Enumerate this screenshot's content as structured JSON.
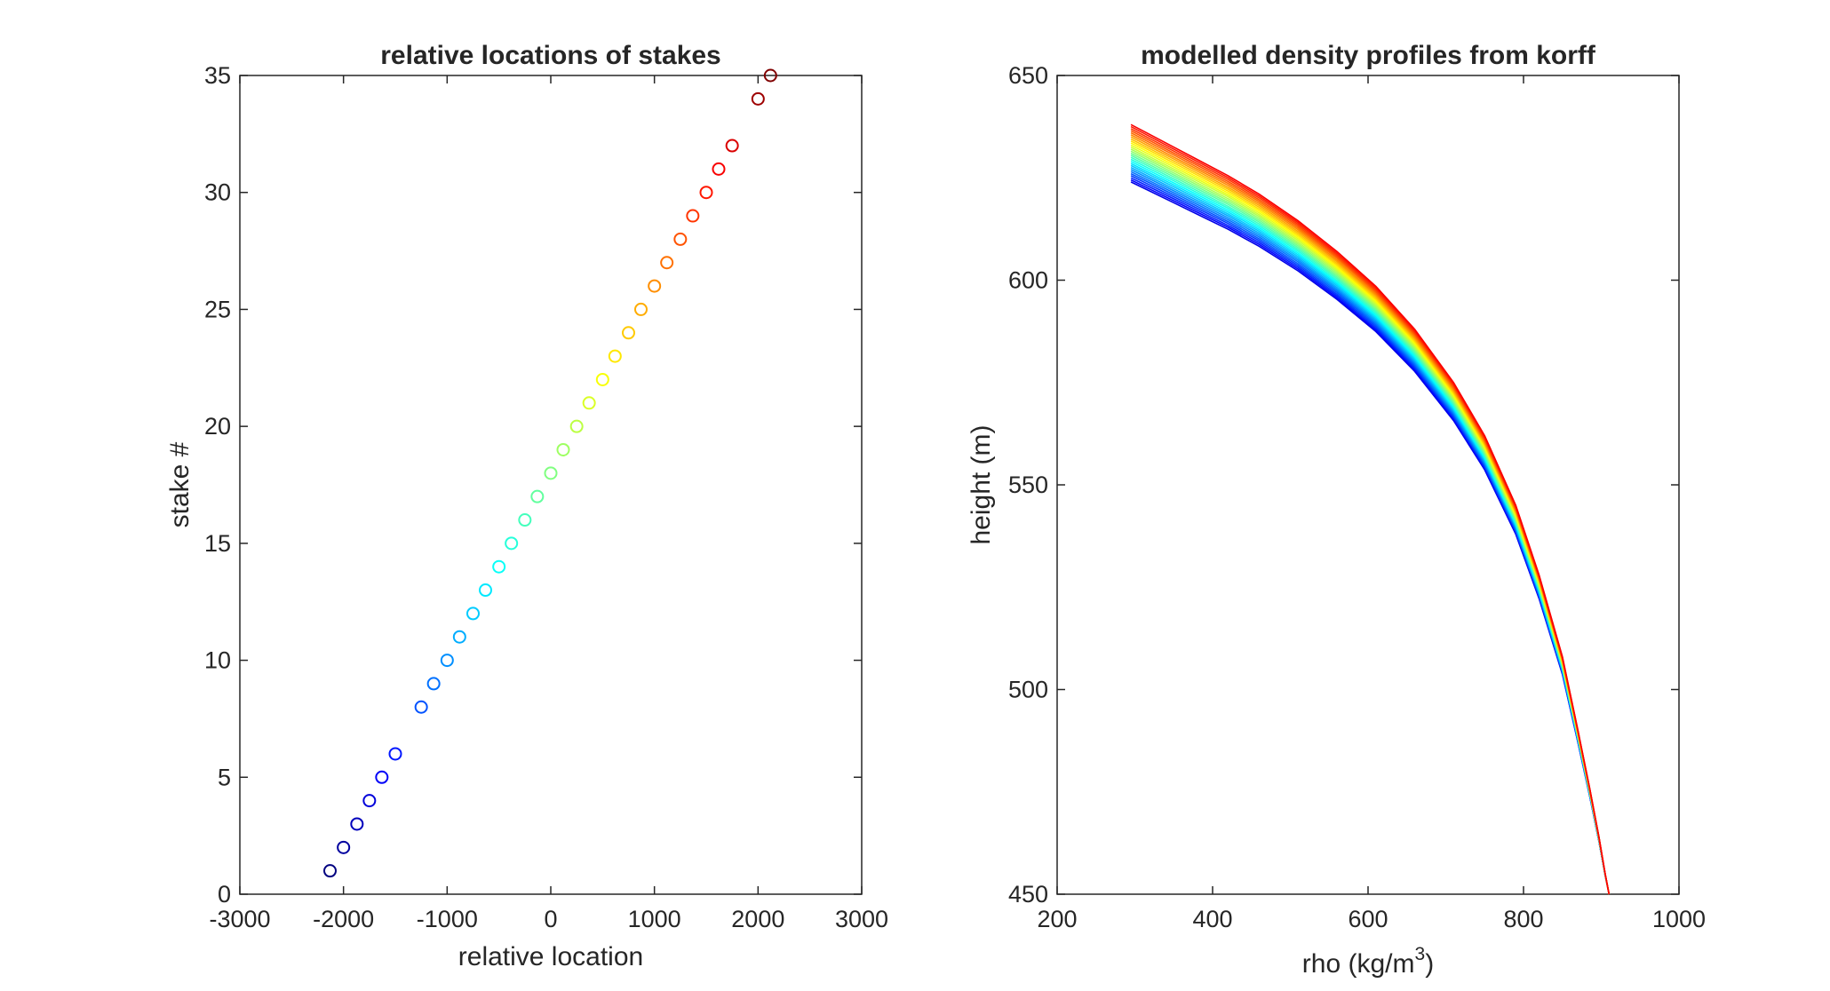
{
  "chart_data": [
    {
      "type": "scatter",
      "title": "relative locations of stakes",
      "xlabel": "relative location",
      "ylabel": "stake #",
      "xlim": [
        -3000,
        3000
      ],
      "ylim": [
        0,
        35
      ],
      "xticks": [
        "-3000",
        "-2000",
        "-1000",
        "0",
        "1000",
        "2000",
        "3000"
      ],
      "yticks": [
        "0",
        "5",
        "10",
        "15",
        "20",
        "25",
        "30",
        "35"
      ],
      "grid": false,
      "marker": "open-circle",
      "colormap": "jet",
      "points": [
        {
          "x": -2130,
          "y": 1
        },
        {
          "x": -2000,
          "y": 2
        },
        {
          "x": -1870,
          "y": 3
        },
        {
          "x": -1750,
          "y": 4
        },
        {
          "x": -1630,
          "y": 5
        },
        {
          "x": -1500,
          "y": 6
        },
        {
          "x": -1250,
          "y": 8
        },
        {
          "x": -1130,
          "y": 9
        },
        {
          "x": -1000,
          "y": 10
        },
        {
          "x": -880,
          "y": 11
        },
        {
          "x": -750,
          "y": 12
        },
        {
          "x": -630,
          "y": 13
        },
        {
          "x": -500,
          "y": 14
        },
        {
          "x": -380,
          "y": 15
        },
        {
          "x": -250,
          "y": 16
        },
        {
          "x": -130,
          "y": 17
        },
        {
          "x": 0,
          "y": 18
        },
        {
          "x": 120,
          "y": 19
        },
        {
          "x": 250,
          "y": 20
        },
        {
          "x": 370,
          "y": 21
        },
        {
          "x": 500,
          "y": 22
        },
        {
          "x": 620,
          "y": 23
        },
        {
          "x": 750,
          "y": 24
        },
        {
          "x": 870,
          "y": 25
        },
        {
          "x": 1000,
          "y": 26
        },
        {
          "x": 1120,
          "y": 27
        },
        {
          "x": 1250,
          "y": 28
        },
        {
          "x": 1370,
          "y": 29
        },
        {
          "x": 1500,
          "y": 30
        },
        {
          "x": 1620,
          "y": 31
        },
        {
          "x": 1750,
          "y": 32
        },
        {
          "x": 2000,
          "y": 34
        },
        {
          "x": 2120,
          "y": 35
        }
      ]
    },
    {
      "type": "line",
      "title": "modelled density profiles from korff",
      "xlabel": "rho (kg/m",
      "xlabel_sup": "3",
      "xlabel_end": ")",
      "ylabel": "height (m)",
      "xlim": [
        200,
        1000
      ],
      "ylim": [
        450,
        650
      ],
      "xticks": [
        "200",
        "400",
        "600",
        "800",
        "1000"
      ],
      "yticks": [
        "450",
        "500",
        "550",
        "600",
        "650"
      ],
      "grid": false,
      "colormap": "jet",
      "shared_x": [
        295,
        320,
        350,
        380,
        420,
        460,
        510,
        560,
        610,
        660,
        710,
        750,
        790,
        820,
        850,
        870,
        885,
        897,
        905,
        910
      ],
      "shared_depth_below_surface": [
        0,
        2.5,
        5.5,
        8.5,
        12.5,
        17,
        23.5,
        31,
        39.5,
        50,
        63,
        76,
        93,
        110,
        130,
        148,
        162,
        174,
        183,
        188
      ],
      "series": [
        {
          "surface": 638.0
        },
        {
          "surface": 637.5
        },
        {
          "surface": 637.0
        },
        {
          "surface": 636.5
        },
        {
          "surface": 636.0
        },
        {
          "surface": 635.5
        },
        {
          "surface": 635.0
        },
        {
          "surface": 634.5
        },
        {
          "surface": 634.0
        },
        {
          "surface": 633.5
        },
        {
          "surface": 633.0
        },
        {
          "surface": 632.5
        },
        {
          "surface": 632.0
        },
        {
          "surface": 631.5
        },
        {
          "surface": 631.0
        },
        {
          "surface": 630.5
        },
        {
          "surface": 630.0
        },
        {
          "surface": 629.5
        },
        {
          "surface": 629.0
        },
        {
          "surface": 628.5
        },
        {
          "surface": 628.0
        },
        {
          "surface": 627.5
        },
        {
          "surface": 627.0
        },
        {
          "surface": 626.5
        },
        {
          "surface": 626.0
        },
        {
          "surface": 625.5
        },
        {
          "surface": 625.0
        },
        {
          "surface": 624.5
        },
        {
          "surface": 624.0
        }
      ]
    }
  ]
}
